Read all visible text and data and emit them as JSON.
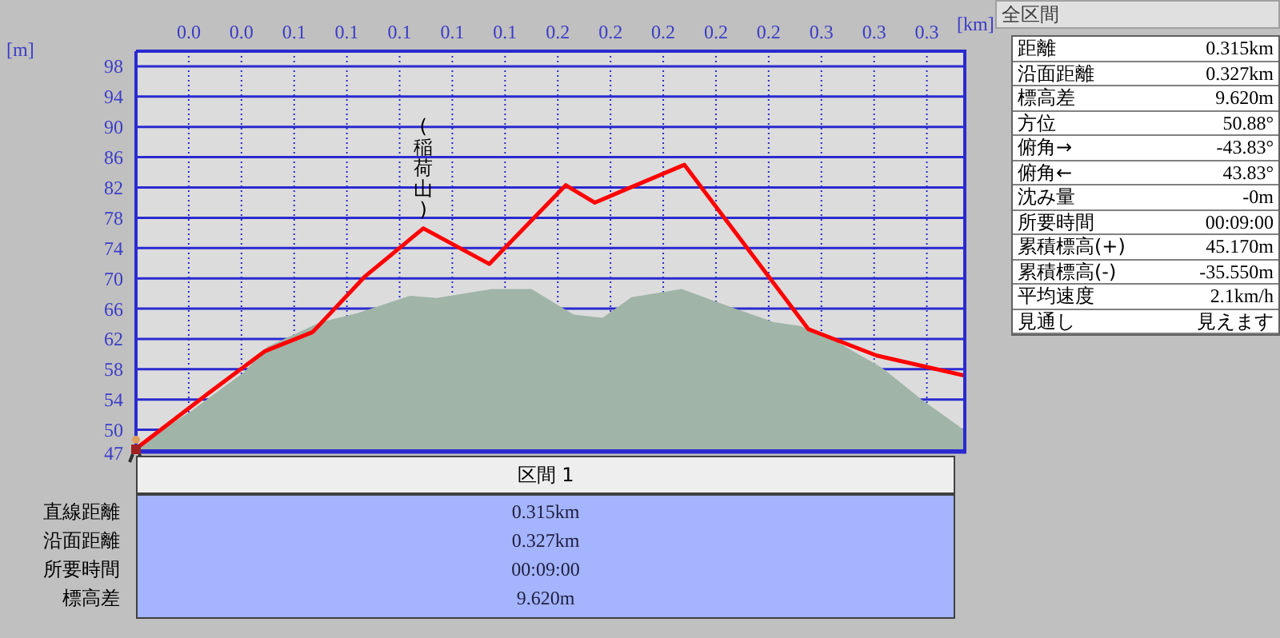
{
  "chart_data": [
    {
      "type": "line",
      "xlabel": "[km]",
      "ylabel": "[m]",
      "xlim": [
        0,
        0.315
      ],
      "ylim": [
        47,
        100
      ],
      "xticks": [
        {
          "value": 0.02,
          "label": "0.0"
        },
        {
          "value": 0.04,
          "label": "0.0"
        },
        {
          "value": 0.06,
          "label": "0.1"
        },
        {
          "value": 0.08,
          "label": "0.1"
        },
        {
          "value": 0.1,
          "label": "0.1"
        },
        {
          "value": 0.12,
          "label": "0.1"
        },
        {
          "value": 0.14,
          "label": "0.1"
        },
        {
          "value": 0.16,
          "label": "0.2"
        },
        {
          "value": 0.18,
          "label": "0.2"
        },
        {
          "value": 0.2,
          "label": "0.2"
        },
        {
          "value": 0.22,
          "label": "0.2"
        },
        {
          "value": 0.24,
          "label": "0.2"
        },
        {
          "value": 0.26,
          "label": "0.3"
        },
        {
          "value": 0.28,
          "label": "0.3"
        },
        {
          "value": 0.3,
          "label": "0.3"
        }
      ],
      "yticks": [
        47,
        50,
        54,
        58,
        62,
        66,
        70,
        74,
        78,
        82,
        86,
        90,
        94,
        98
      ],
      "grid": true,
      "marker": "none",
      "series": [
        {
          "type": "area",
          "color": "#a0b4a8",
          "x": [
            0.001,
            0.021,
            0.041,
            0.05,
            0.07,
            0.084,
            0.104,
            0.114,
            0.135,
            0.15,
            0.166,
            0.177,
            0.188,
            0.207,
            0.225,
            0.242,
            0.252,
            0.264,
            0.283,
            0.298,
            0.314
          ],
          "values": [
            47.9,
            52.5,
            57.6,
            61.0,
            64.2,
            65.4,
            67.7,
            67.4,
            68.6,
            68.6,
            65.2,
            64.8,
            67.5,
            68.6,
            66.3,
            64.2,
            63.7,
            62.0,
            58.2,
            54.0,
            50.0
          ]
        },
        {
          "type": "line",
          "color": "#ff0000",
          "x": [
            0,
            0.027,
            0.049,
            0.067,
            0.087,
            0.109,
            0.134,
            0.163,
            0.174,
            0.208,
            0.255,
            0.281,
            0.315
          ],
          "values": [
            47.5,
            54.7,
            60.4,
            62.9,
            70.3,
            76.6,
            71.9,
            82.3,
            80.0,
            85.0,
            63.3,
            59.8,
            57.1
          ]
        }
      ],
      "annotations": [
        {
          "text": "(稲荷山)",
          "x": 0.109,
          "y": 76.6
        }
      ]
    },
    {
      "type": "other",
      "title": "区間 1",
      "annotations": [
        "直線距離",
        "0.315km",
        "沿面距離",
        "0.327km",
        "所要時間",
        "00:09:00",
        "標高差",
        "9.620m"
      ]
    },
    {
      "type": "other",
      "title": "全区間",
      "annotations": [
        "距離",
        "0.315km",
        "沿面距離",
        "0.327km",
        "標高差",
        "9.620m",
        "方位",
        "50.88°",
        "俯角→",
        "-43.83°",
        "俯角←",
        "43.83°",
        "沈み量",
        "-0m",
        "所要時間",
        "00:09:00",
        "累積標高(+)",
        "45.170m",
        "累積標高(-)",
        "-35.550m",
        "平均速度",
        "2.1km/h",
        "見通し",
        "見えます"
      ]
    }
  ]
}
